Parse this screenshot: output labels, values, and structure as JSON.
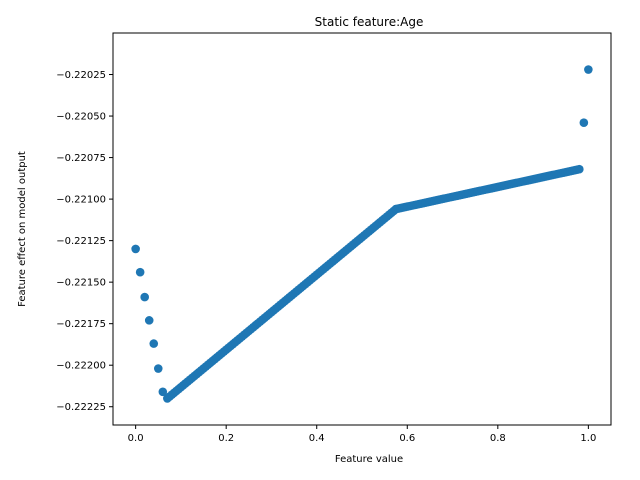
{
  "chart_data": {
    "type": "scatter",
    "title": "Static feature:Age",
    "xlabel": "Feature value",
    "ylabel": "Feature effect on model output",
    "xlim": [
      -0.05,
      1.05
    ],
    "ylim": [
      -0.22236,
      -0.22
    ],
    "xticks": [
      0.0,
      0.2,
      0.4,
      0.6,
      0.8,
      1.0
    ],
    "xtick_labels": [
      "0.0",
      "0.2",
      "0.4",
      "0.6",
      "0.8",
      "1.0"
    ],
    "yticks": [
      -0.22225,
      -0.222,
      -0.22175,
      -0.2215,
      -0.22125,
      -0.221,
      -0.22075,
      -0.2205,
      -0.22025
    ],
    "ytick_labels": [
      "−0.22225",
      "−0.22200",
      "−0.22175",
      "−0.22150",
      "−0.22125",
      "−0.22100",
      "−0.22075",
      "−0.22050",
      "−0.22025"
    ],
    "grid": false,
    "marker_color": "#1f77b4",
    "points_discrete": [
      {
        "x": 0.0,
        "y": -0.2213
      },
      {
        "x": 0.01,
        "y": -0.22144
      },
      {
        "x": 0.02,
        "y": -0.22159
      },
      {
        "x": 0.03,
        "y": -0.22173
      },
      {
        "x": 0.04,
        "y": -0.22187
      },
      {
        "x": 0.05,
        "y": -0.22202
      },
      {
        "x": 0.06,
        "y": -0.22216
      },
      {
        "x": 0.99,
        "y": -0.22054
      },
      {
        "x": 1.0,
        "y": -0.22022
      }
    ],
    "points_dense_segments": [
      {
        "x_start": 0.07,
        "x_end": 0.575,
        "y_start": -0.2222,
        "y_end": -0.22106,
        "step": 0.005
      },
      {
        "x_start": 0.575,
        "x_end": 0.98,
        "y_start": -0.22106,
        "y_end": -0.22082,
        "step": 0.005
      }
    ]
  }
}
